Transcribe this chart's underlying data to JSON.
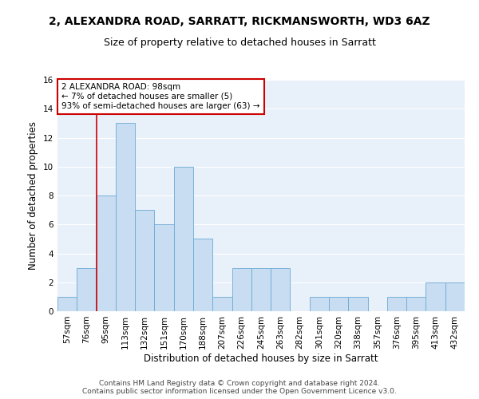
{
  "title": "2, ALEXANDRA ROAD, SARRATT, RICKMANSWORTH, WD3 6AZ",
  "subtitle": "Size of property relative to detached houses in Sarratt",
  "xlabel": "Distribution of detached houses by size in Sarratt",
  "ylabel": "Number of detached properties",
  "footer_line1": "Contains HM Land Registry data © Crown copyright and database right 2024.",
  "footer_line2": "Contains public sector information licensed under the Open Government Licence v3.0.",
  "bar_labels": [
    "57sqm",
    "76sqm",
    "95sqm",
    "113sqm",
    "132sqm",
    "151sqm",
    "170sqm",
    "188sqm",
    "207sqm",
    "226sqm",
    "245sqm",
    "263sqm",
    "282sqm",
    "301sqm",
    "320sqm",
    "338sqm",
    "357sqm",
    "376sqm",
    "395sqm",
    "413sqm",
    "432sqm"
  ],
  "bar_values": [
    1,
    3,
    8,
    13,
    7,
    6,
    10,
    5,
    1,
    3,
    3,
    3,
    0,
    1,
    1,
    1,
    0,
    1,
    1,
    2,
    2
  ],
  "bar_color": "#c9ddf2",
  "bar_edge_color": "#6aaad4",
  "annotation_line1": "2 ALEXANDRA ROAD: 98sqm",
  "annotation_line2": "← 7% of detached houses are smaller (5)",
  "annotation_line3": "93% of semi-detached houses are larger (63) →",
  "vline_x_index": 2,
  "vline_color": "#cc0000",
  "annotation_box_color": "#cc0000",
  "ylim": [
    0,
    16
  ],
  "yticks": [
    0,
    2,
    4,
    6,
    8,
    10,
    12,
    14,
    16
  ],
  "background_color": "#e8f0fa",
  "grid_color": "#ffffff",
  "title_fontsize": 10,
  "subtitle_fontsize": 9,
  "axis_label_fontsize": 8.5,
  "tick_fontsize": 7.5,
  "annotation_fontsize": 7.5,
  "footer_fontsize": 6.5
}
